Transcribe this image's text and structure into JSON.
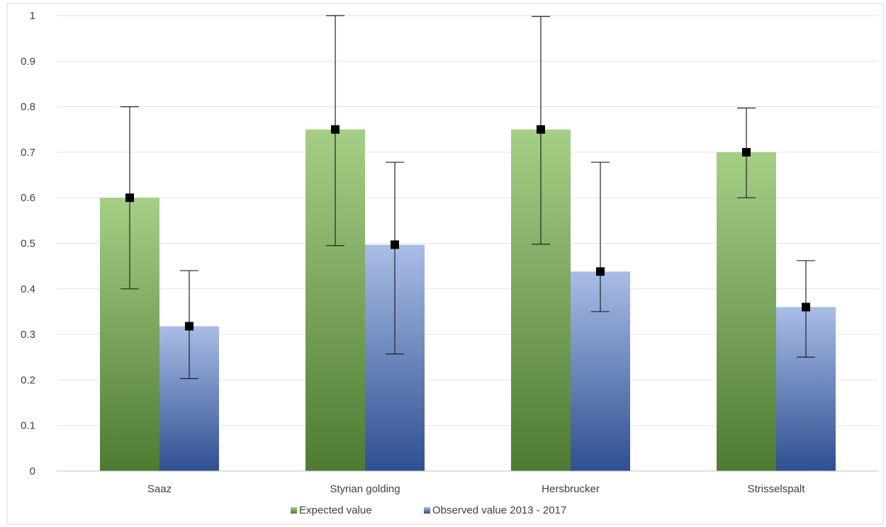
{
  "chart_data": {
    "type": "bar",
    "title": "",
    "xlabel": "",
    "ylabel": "",
    "ylim": [
      0,
      1
    ],
    "yticks": [
      0,
      0.1,
      0.2,
      0.3,
      0.4,
      0.5,
      0.6,
      0.7,
      0.8,
      0.9,
      1
    ],
    "ytick_labels": [
      "0",
      "0.1",
      "0.2",
      "0.3",
      "0.4",
      "0.5",
      "0.6",
      "0.7",
      "0.8",
      "0.9",
      "1"
    ],
    "grid": true,
    "legend_position": "bottom",
    "categories": [
      "Saaz",
      "Styrian golding",
      "Hersbrucker",
      "Strisselspalt"
    ],
    "series": [
      {
        "name": "Expected value",
        "color": "#7fae5a",
        "values": [
          0.6,
          0.75,
          0.75,
          0.7
        ],
        "error_low": [
          0.4,
          0.495,
          0.498,
          0.6
        ],
        "error_high": [
          0.8,
          1.0,
          0.998,
          0.797
        ]
      },
      {
        "name": "Observed value 2013 - 2017",
        "color": "#5a7fc0",
        "values": [
          0.318,
          0.497,
          0.438,
          0.36
        ],
        "error_low": [
          0.203,
          0.257,
          0.35,
          0.25
        ],
        "error_high": [
          0.44,
          0.678,
          0.678,
          0.462
        ]
      }
    ]
  }
}
